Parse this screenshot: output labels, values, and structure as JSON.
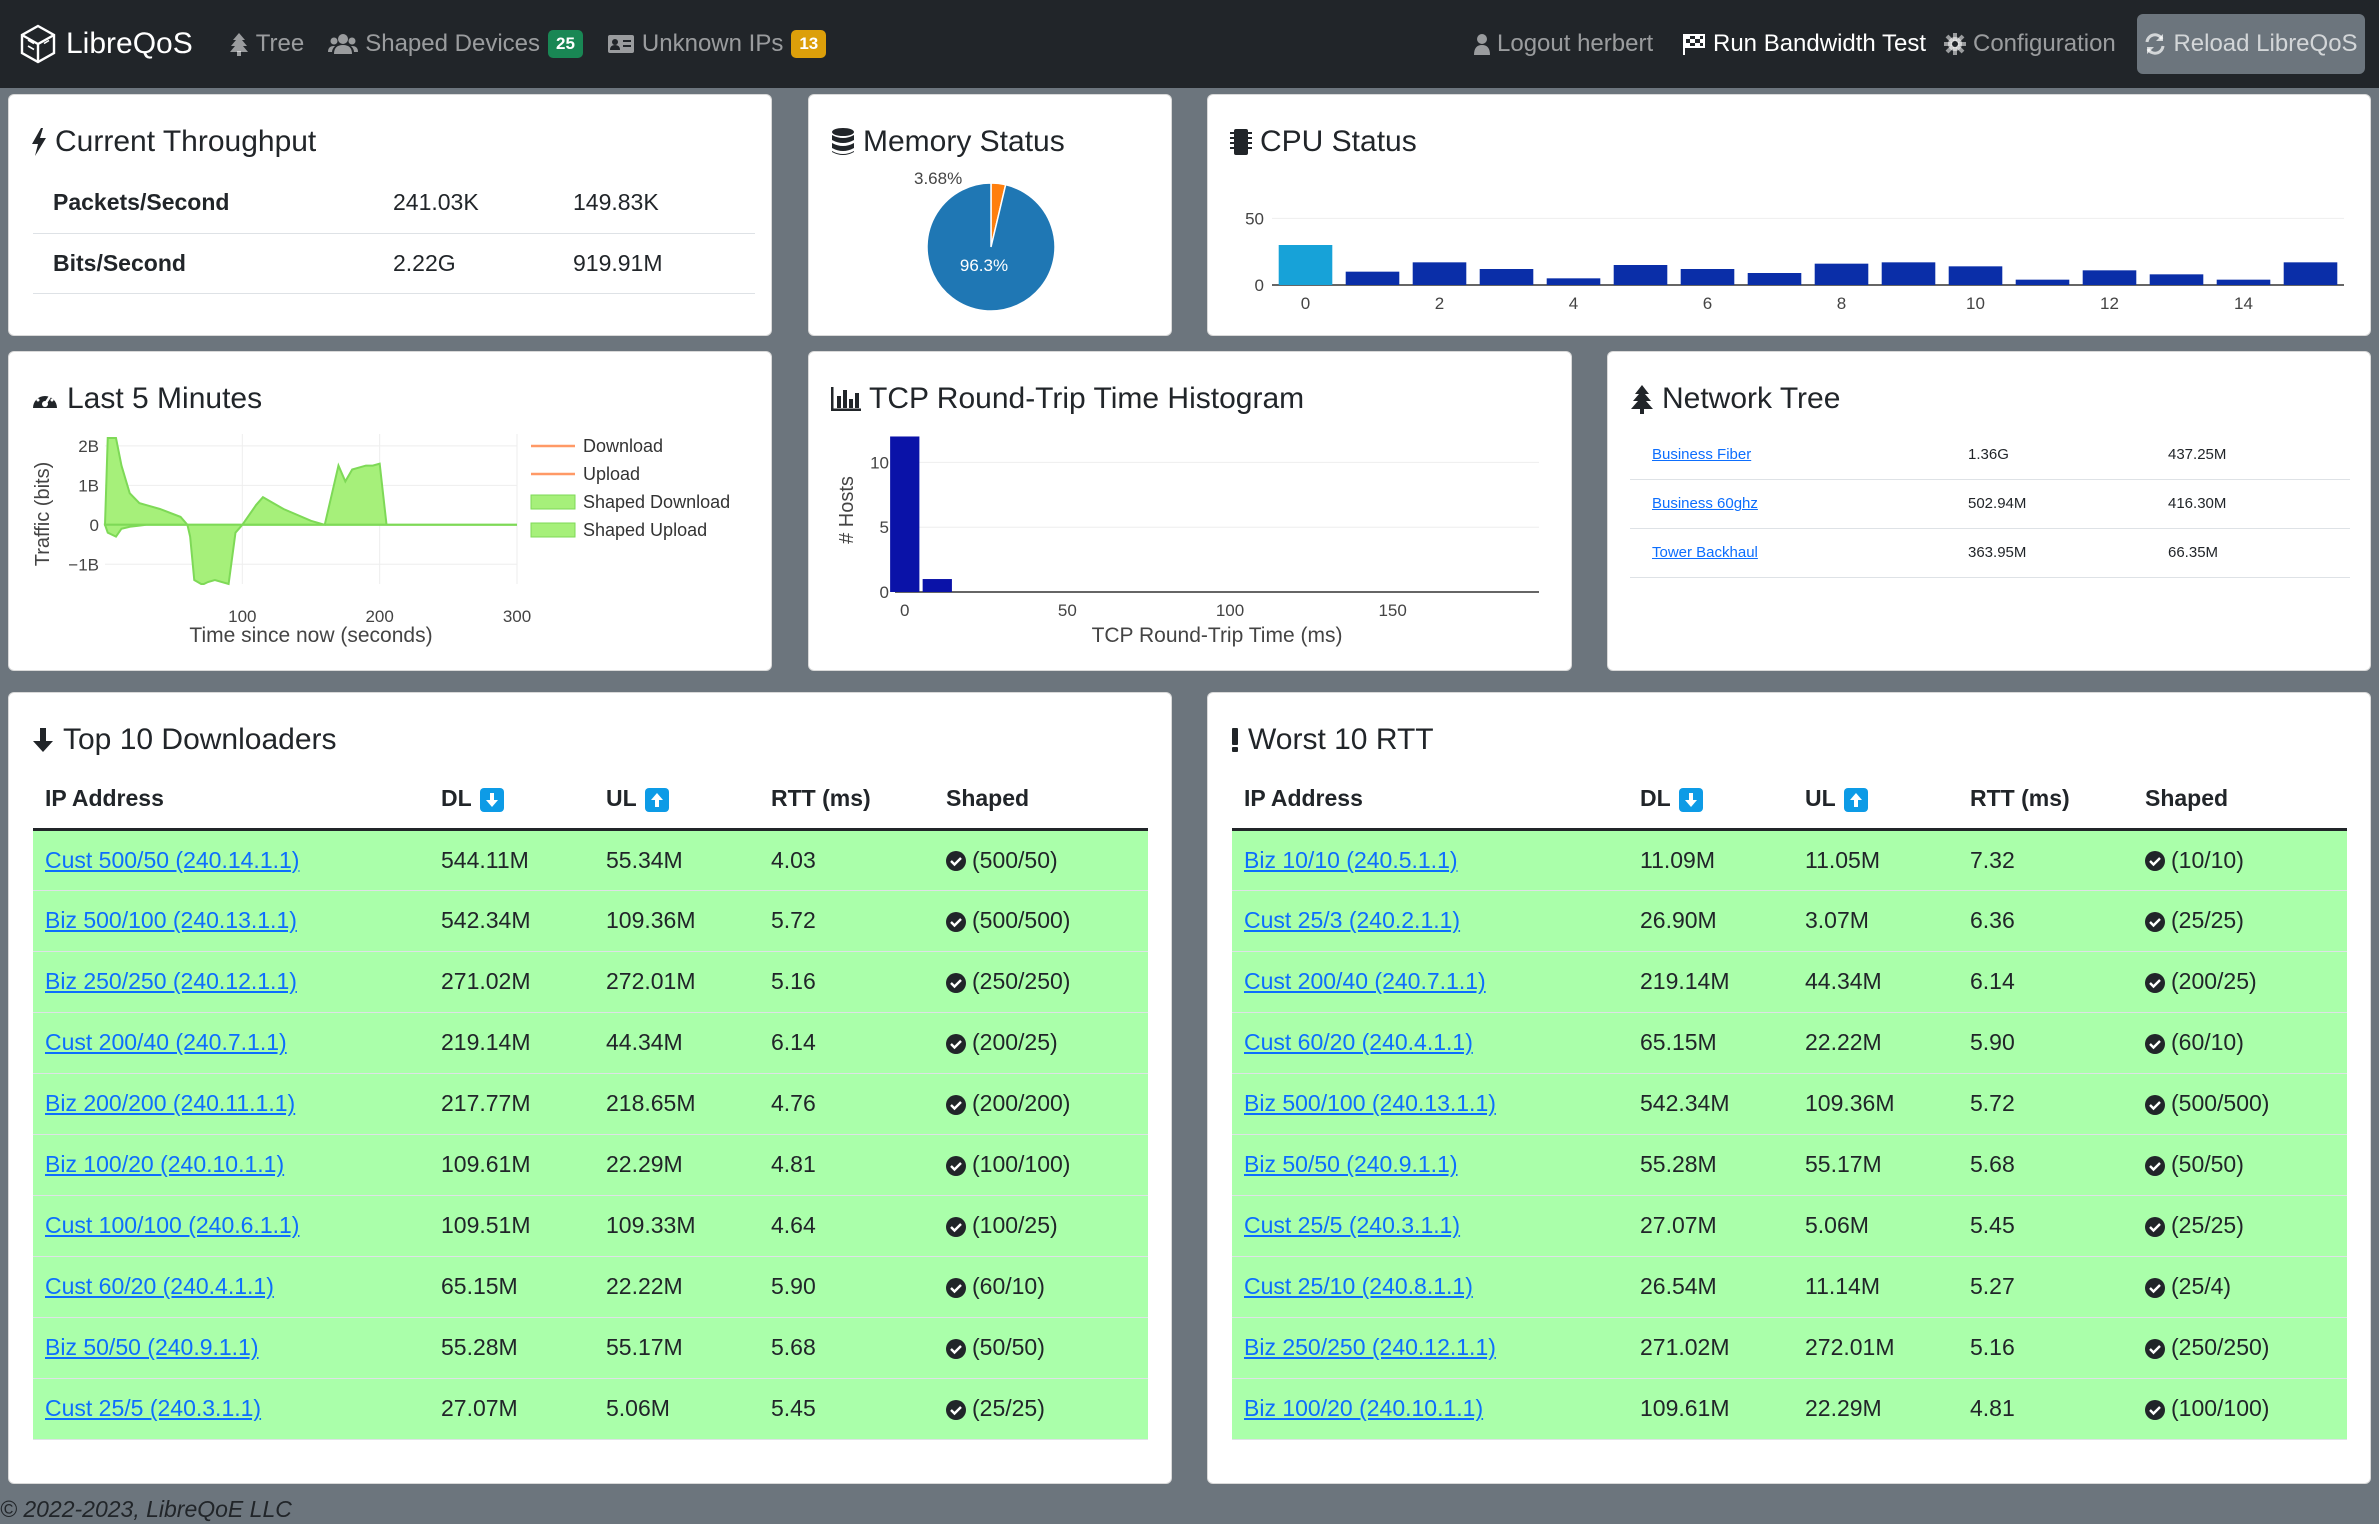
{
  "nav": {
    "brand": "LibreQoS",
    "tree": "Tree",
    "shaped_devices": "Shaped Devices",
    "shaped_devices_count": "25",
    "unknown_ips": "Unknown IPs",
    "unknown_ips_count": "13",
    "logout": "Logout herbert",
    "bandwidth_test": "Run Bandwidth Test",
    "configuration": "Configuration",
    "reload": "Reload LibreQoS"
  },
  "throughput": {
    "title": "Current Throughput",
    "rows": [
      {
        "label": "Packets/Second",
        "down": "241.03K",
        "up": "149.83K"
      },
      {
        "label": "Bits/Second",
        "down": "2.22G",
        "up": "919.91M"
      }
    ]
  },
  "memory": {
    "title": "Memory Status",
    "free_label": "3.68%",
    "used_label": "96.3%",
    "colors": {
      "used": "#1f77b4",
      "free": "#ff7f0e"
    },
    "chart_data": {
      "type": "pie",
      "categories": [
        "used",
        "free"
      ],
      "values": [
        96.3,
        3.68
      ]
    }
  },
  "cpu": {
    "title": "CPU Status",
    "chart_data": {
      "type": "bar",
      "categories": [
        0,
        1,
        2,
        3,
        4,
        5,
        6,
        7,
        8,
        9,
        10,
        11,
        12,
        13,
        14,
        15
      ],
      "values": [
        30,
        10,
        17,
        12,
        5,
        15,
        12,
        9,
        16,
        17,
        14,
        4,
        11,
        8,
        4,
        17
      ],
      "ylim": [
        0,
        60
      ],
      "yticks": [
        0,
        50
      ],
      "xticks": [
        0,
        2,
        4,
        6,
        8,
        10,
        12,
        14
      ],
      "colors": {
        "first": "#17a2d8",
        "rest": "#0a2ea8"
      }
    }
  },
  "last5": {
    "title": "Last 5 Minutes",
    "ylabel": "Traffic (bits)",
    "xlabel": "Time since now (seconds)",
    "legend": [
      "Download",
      "Upload",
      "Shaped Download",
      "Shaped Upload"
    ],
    "chart_data": {
      "type": "area",
      "xlim": [
        0,
        300
      ],
      "ylim": [
        -1.5,
        2.3
      ],
      "yticks": [
        {
          "v": 2,
          "t": "2B"
        },
        {
          "v": 1,
          "t": "1B"
        },
        {
          "v": 0,
          "t": "0"
        },
        {
          "v": -1,
          "t": "−1B"
        }
      ],
      "xticks": [
        100,
        200,
        300
      ],
      "series": [
        {
          "name": "Shaped Download",
          "x": [
            0,
            2,
            8,
            12,
            18,
            25,
            30,
            40,
            55,
            60,
            62,
            65,
            70,
            72,
            75,
            80,
            90,
            95,
            100,
            110,
            115,
            120,
            130,
            150,
            160,
            165,
            170,
            175,
            180,
            190,
            195,
            200,
            205,
            210,
            220,
            240,
            260,
            280,
            300
          ],
          "y": [
            0,
            2.2,
            2.2,
            1.5,
            0.8,
            0.55,
            0.5,
            0.4,
            0.2,
            0,
            0,
            0,
            0,
            0,
            0,
            0,
            0,
            0,
            0,
            0.5,
            0.7,
            0.6,
            0.4,
            0.1,
            0,
            0.75,
            1.5,
            1.1,
            1.4,
            1.5,
            1.5,
            1.55,
            0,
            0,
            0,
            0,
            0,
            0,
            0
          ]
        },
        {
          "name": "Shaped Upload",
          "x": [
            0,
            2,
            8,
            12,
            18,
            25,
            30,
            40,
            55,
            60,
            62,
            65,
            70,
            72,
            75,
            80,
            90,
            95,
            100,
            110,
            115,
            120,
            130,
            150,
            160,
            165,
            170,
            175,
            180,
            190,
            195,
            200,
            205,
            210,
            220,
            240,
            260,
            280,
            300
          ],
          "y": [
            0,
            -0.2,
            -0.3,
            -0.1,
            -0.05,
            -0.02,
            0,
            0,
            0,
            0,
            -0.3,
            -1.4,
            -1.5,
            -1.5,
            -1.45,
            -1.4,
            -1.5,
            -0.2,
            0,
            0,
            0,
            0,
            0,
            0,
            0,
            0,
            0,
            0,
            0,
            0,
            0,
            0,
            0,
            0,
            0,
            0,
            0,
            0,
            0
          ]
        }
      ],
      "colors": {
        "fill": "#a6f07a",
        "line": "#7ed957",
        "download": "#ff9966"
      }
    }
  },
  "tcp": {
    "title": "TCP Round-Trip Time Histogram",
    "ylabel": "# Hosts",
    "xlabel": "TCP Round-Trip Time (ms)",
    "chart_data": {
      "type": "bar",
      "x": [
        0,
        10
      ],
      "values": [
        12,
        1
      ],
      "bin_width": 10,
      "xlim": [
        -3,
        195
      ],
      "ylim": [
        0,
        12.5
      ],
      "yticks": [
        0,
        5,
        10
      ],
      "xticks": [
        0,
        50,
        100,
        150
      ],
      "color": "#0a12a8"
    }
  },
  "network_tree": {
    "title": "Network Tree",
    "rows": [
      {
        "name": "Business Fiber",
        "down": "1.36G",
        "up": "437.25M"
      },
      {
        "name": "Business 60ghz",
        "down": "502.94M",
        "up": "416.30M"
      },
      {
        "name": "Tower Backhaul",
        "down": "363.95M",
        "up": "66.35M"
      }
    ]
  },
  "downloaders": {
    "title": "Top 10 Downloaders",
    "headers": [
      "IP Address",
      "DL",
      "UL",
      "RTT (ms)",
      "Shaped"
    ],
    "rows": [
      {
        "ip": "Cust 500/50 (240.14.1.1)",
        "dl": "544.11M",
        "ul": "55.34M",
        "rtt": "4.03",
        "shaped": "(500/50)"
      },
      {
        "ip": "Biz 500/100 (240.13.1.1)",
        "dl": "542.34M",
        "ul": "109.36M",
        "rtt": "5.72",
        "shaped": "(500/500)"
      },
      {
        "ip": "Biz 250/250 (240.12.1.1)",
        "dl": "271.02M",
        "ul": "272.01M",
        "rtt": "5.16",
        "shaped": "(250/250)"
      },
      {
        "ip": "Cust 200/40 (240.7.1.1)",
        "dl": "219.14M",
        "ul": "44.34M",
        "rtt": "6.14",
        "shaped": "(200/25)"
      },
      {
        "ip": "Biz 200/200 (240.11.1.1)",
        "dl": "217.77M",
        "ul": "218.65M",
        "rtt": "4.76",
        "shaped": "(200/200)"
      },
      {
        "ip": "Biz 100/20 (240.10.1.1)",
        "dl": "109.61M",
        "ul": "22.29M",
        "rtt": "4.81",
        "shaped": "(100/100)"
      },
      {
        "ip": "Cust 100/100 (240.6.1.1)",
        "dl": "109.51M",
        "ul": "109.33M",
        "rtt": "4.64",
        "shaped": "(100/25)"
      },
      {
        "ip": "Cust 60/20 (240.4.1.1)",
        "dl": "65.15M",
        "ul": "22.22M",
        "rtt": "5.90",
        "shaped": "(60/10)"
      },
      {
        "ip": "Biz 50/50 (240.9.1.1)",
        "dl": "55.28M",
        "ul": "55.17M",
        "rtt": "5.68",
        "shaped": "(50/50)"
      },
      {
        "ip": "Cust 25/5 (240.3.1.1)",
        "dl": "27.07M",
        "ul": "5.06M",
        "rtt": "5.45",
        "shaped": "(25/25)"
      }
    ]
  },
  "worst_rtt": {
    "title": "Worst 10 RTT",
    "headers": [
      "IP Address",
      "DL",
      "UL",
      "RTT (ms)",
      "Shaped"
    ],
    "rows": [
      {
        "ip": "Biz 10/10 (240.5.1.1)",
        "dl": "11.09M",
        "ul": "11.05M",
        "rtt": "7.32",
        "shaped": "(10/10)"
      },
      {
        "ip": "Cust 25/3 (240.2.1.1)",
        "dl": "26.90M",
        "ul": "3.07M",
        "rtt": "6.36",
        "shaped": "(25/25)"
      },
      {
        "ip": "Cust 200/40 (240.7.1.1)",
        "dl": "219.14M",
        "ul": "44.34M",
        "rtt": "6.14",
        "shaped": "(200/25)"
      },
      {
        "ip": "Cust 60/20 (240.4.1.1)",
        "dl": "65.15M",
        "ul": "22.22M",
        "rtt": "5.90",
        "shaped": "(60/10)"
      },
      {
        "ip": "Biz 500/100 (240.13.1.1)",
        "dl": "542.34M",
        "ul": "109.36M",
        "rtt": "5.72",
        "shaped": "(500/500)"
      },
      {
        "ip": "Biz 50/50 (240.9.1.1)",
        "dl": "55.28M",
        "ul": "55.17M",
        "rtt": "5.68",
        "shaped": "(50/50)"
      },
      {
        "ip": "Cust 25/5 (240.3.1.1)",
        "dl": "27.07M",
        "ul": "5.06M",
        "rtt": "5.45",
        "shaped": "(25/25)"
      },
      {
        "ip": "Cust 25/10 (240.8.1.1)",
        "dl": "26.54M",
        "ul": "11.14M",
        "rtt": "5.27",
        "shaped": "(25/4)"
      },
      {
        "ip": "Biz 250/250 (240.12.1.1)",
        "dl": "271.02M",
        "ul": "272.01M",
        "rtt": "5.16",
        "shaped": "(250/250)"
      },
      {
        "ip": "Biz 100/20 (240.10.1.1)",
        "dl": "109.61M",
        "ul": "22.29M",
        "rtt": "4.81",
        "shaped": "(100/100)"
      }
    ]
  },
  "footer": "© 2022-2023, LibreQoE LLC",
  "colors": {
    "row_green": "#aaffaa",
    "link": "#0d6efd",
    "nav_bg": "#212529",
    "page_bg": "#6c757d"
  }
}
